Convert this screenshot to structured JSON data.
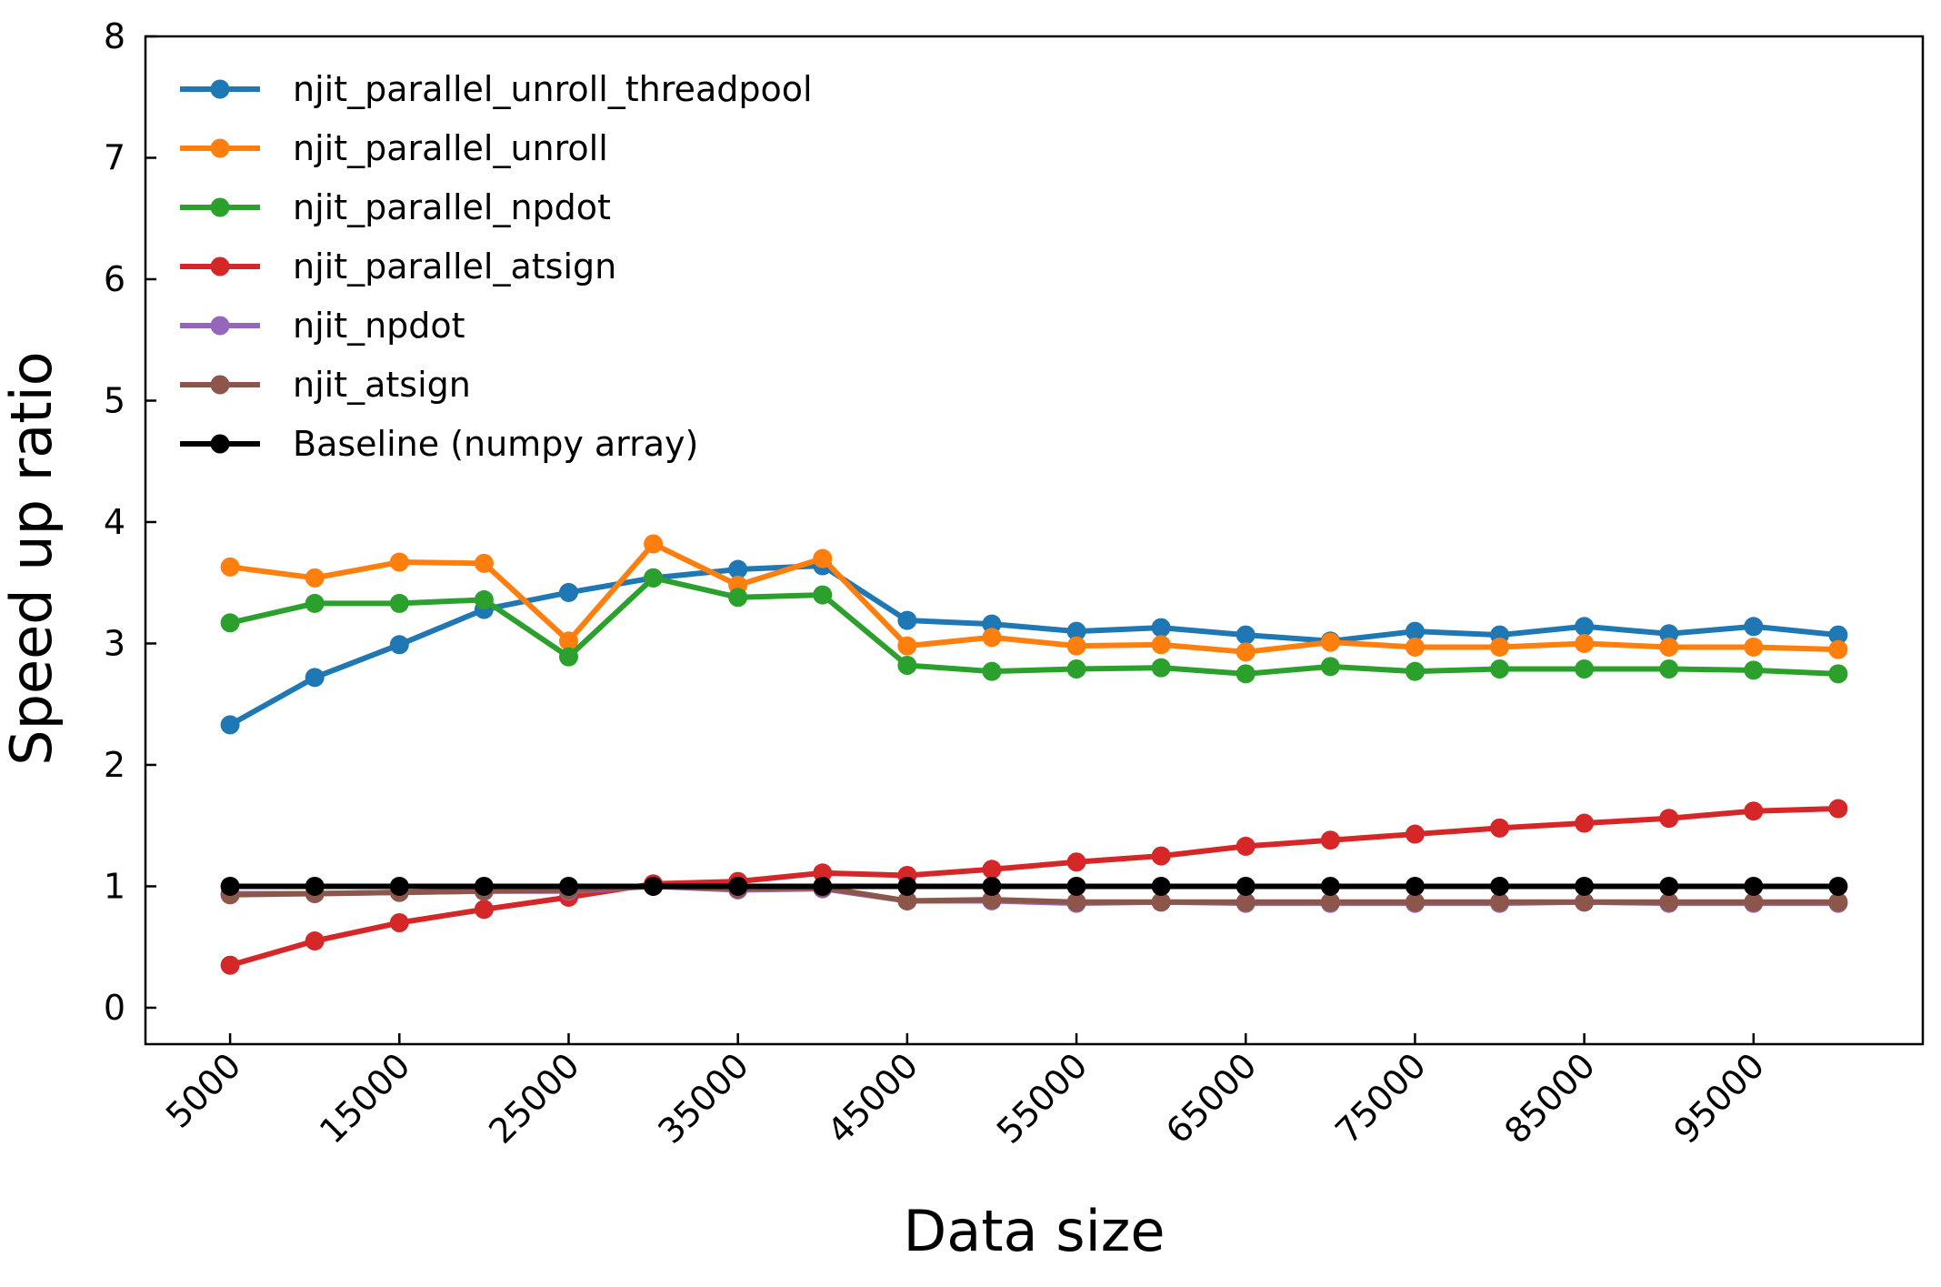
{
  "chart_data": {
    "type": "line",
    "title": "",
    "xlabel": "Data size",
    "ylabel": "Speed up ratio",
    "xlim": [
      0,
      105000
    ],
    "ylim": [
      -0.3,
      8
    ],
    "x": [
      5000,
      10000,
      15000,
      20000,
      25000,
      30000,
      35000,
      40000,
      45000,
      50000,
      55000,
      60000,
      65000,
      70000,
      75000,
      80000,
      85000,
      90000,
      95000,
      100000
    ],
    "x_ticks": [
      5000,
      15000,
      25000,
      35000,
      45000,
      55000,
      65000,
      75000,
      85000,
      95000
    ],
    "x_tick_labels": [
      "5000",
      "15000",
      "25000",
      "35000",
      "45000",
      "55000",
      "65000",
      "75000",
      "85000",
      "95000"
    ],
    "y_ticks": [
      0,
      1,
      2,
      3,
      4,
      5,
      6,
      7,
      8
    ],
    "y_tick_labels": [
      "0",
      "1",
      "2",
      "3",
      "4",
      "5",
      "6",
      "7",
      "8"
    ],
    "grid": false,
    "legend_position": "top-left",
    "series": [
      {
        "name": "njit_parallel_unroll_threadpool",
        "color": "#1f77b4",
        "values": [
          2.33,
          2.72,
          2.99,
          3.28,
          3.42,
          3.54,
          3.61,
          3.64,
          3.19,
          3.16,
          3.1,
          3.13,
          3.07,
          3.02,
          3.1,
          3.07,
          3.14,
          3.08,
          3.14,
          3.07
        ]
      },
      {
        "name": "njit_parallel_unroll",
        "color": "#ff7f0e",
        "values": [
          3.63,
          3.54,
          3.67,
          3.66,
          3.02,
          3.82,
          3.48,
          3.7,
          2.98,
          3.05,
          2.98,
          2.99,
          2.93,
          3.01,
          2.97,
          2.97,
          3.0,
          2.97,
          2.97,
          2.95
        ]
      },
      {
        "name": "njit_parallel_npdot",
        "color": "#2ca02c",
        "values": [
          3.17,
          3.33,
          3.33,
          3.36,
          2.89,
          3.54,
          3.38,
          3.4,
          2.82,
          2.77,
          2.79,
          2.8,
          2.75,
          2.81,
          2.77,
          2.79,
          2.79,
          2.79,
          2.78,
          2.75
        ]
      },
      {
        "name": "njit_parallel_atsign",
        "color": "#d62728",
        "values": [
          0.35,
          0.55,
          0.7,
          0.81,
          0.91,
          1.02,
          1.04,
          1.11,
          1.09,
          1.14,
          1.2,
          1.25,
          1.33,
          1.38,
          1.43,
          1.48,
          1.52,
          1.56,
          1.62,
          1.64
        ]
      },
      {
        "name": "njit_npdot",
        "color": "#9467bd",
        "values": [
          0.94,
          0.94,
          0.95,
          0.96,
          0.96,
          1.0,
          0.97,
          0.98,
          0.88,
          0.88,
          0.86,
          0.87,
          0.86,
          0.86,
          0.86,
          0.86,
          0.87,
          0.86,
          0.86,
          0.86
        ]
      },
      {
        "name": "njit_atsign",
        "color": "#8c564b",
        "values": [
          0.93,
          0.94,
          0.95,
          0.96,
          0.97,
          1.0,
          0.98,
          0.99,
          0.88,
          0.89,
          0.87,
          0.87,
          0.87,
          0.87,
          0.87,
          0.87,
          0.87,
          0.87,
          0.87,
          0.87
        ]
      },
      {
        "name": "Baseline (numpy array)",
        "color": "#000000",
        "values": [
          1,
          1,
          1,
          1,
          1,
          1,
          1,
          1,
          1,
          1,
          1,
          1,
          1,
          1,
          1,
          1,
          1,
          1,
          1,
          1
        ]
      }
    ]
  }
}
